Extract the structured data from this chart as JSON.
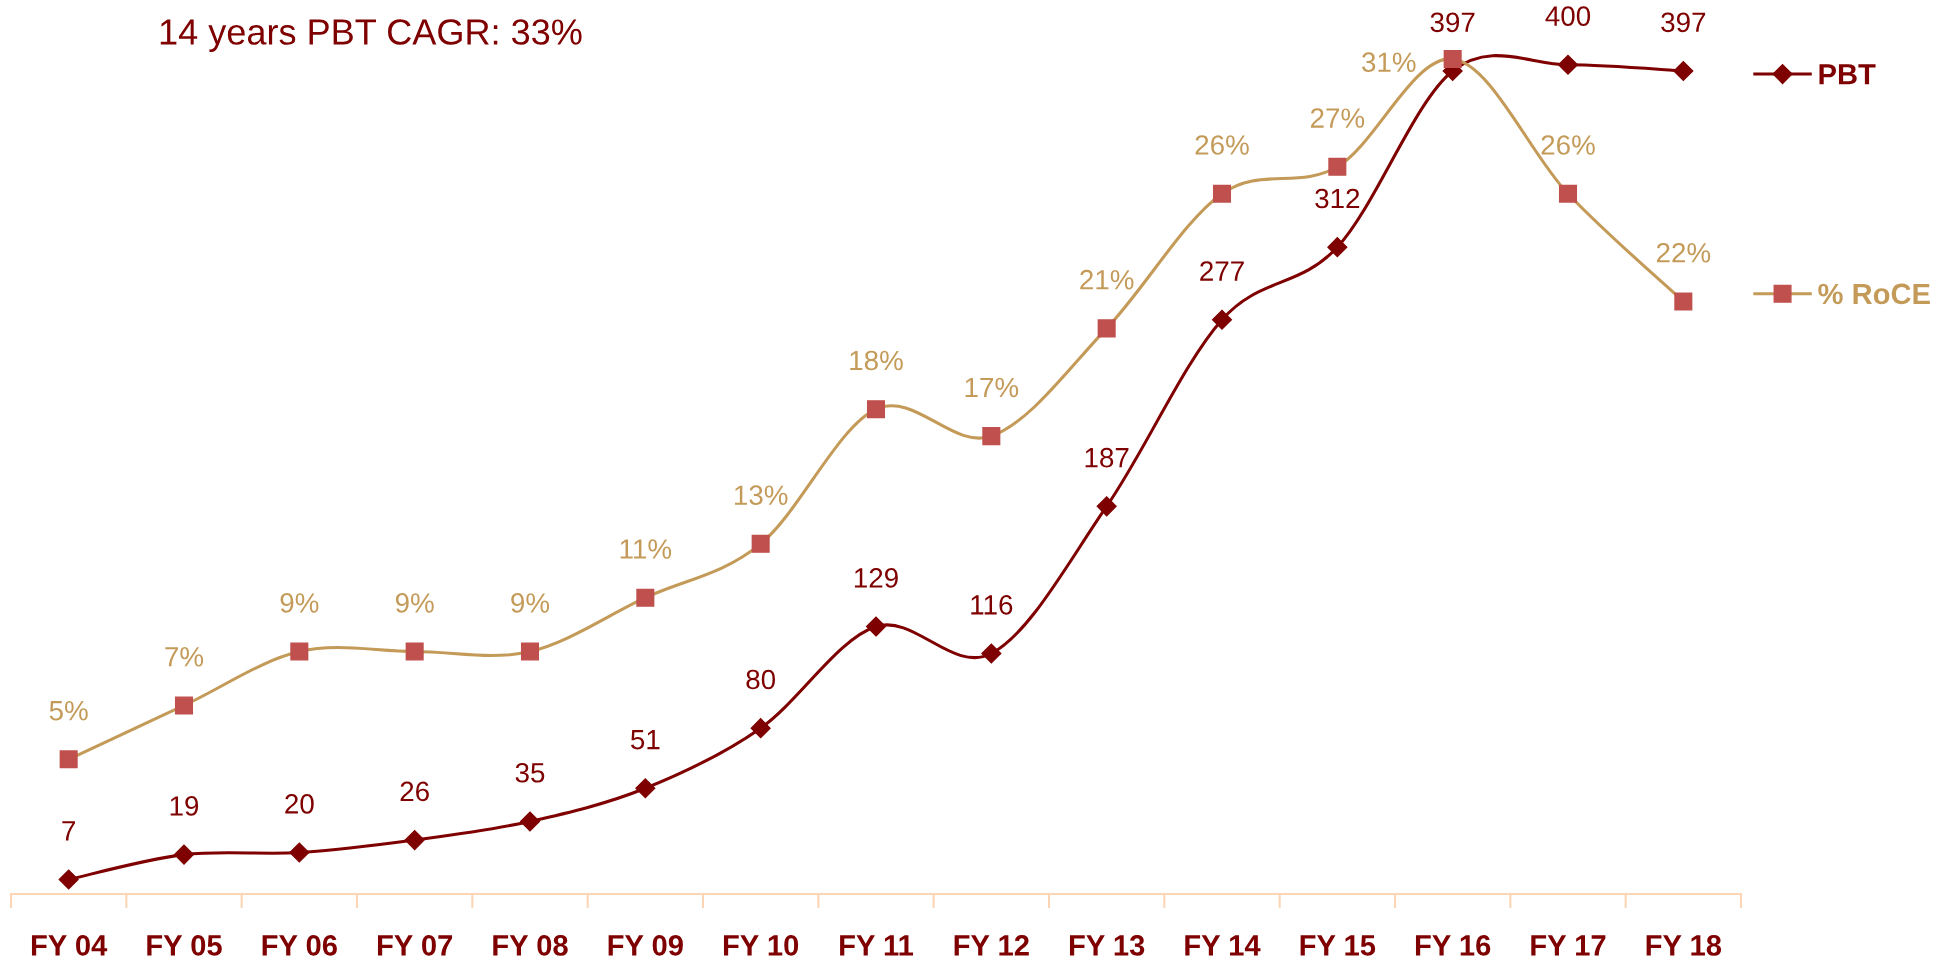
{
  "chart_data": {
    "type": "line",
    "title": "14 years PBT CAGR: 33%",
    "categories": [
      "FY 04",
      "FY 05",
      "FY 06",
      "FY 07",
      "FY 08",
      "FY 09",
      "FY 10",
      "FY 11",
      "FY 12",
      "FY 13",
      "FY 14",
      "FY 15",
      "FY 16",
      "FY 17",
      "FY 18"
    ],
    "series": [
      {
        "name": "PBT",
        "color": "#7f0000",
        "marker": "diamond",
        "values": [
          7,
          19,
          20,
          26,
          35,
          51,
          80,
          129,
          116,
          187,
          277,
          312,
          397,
          400,
          397
        ],
        "value_labels": [
          "7",
          "19",
          "20",
          "26",
          "35",
          "51",
          "80",
          "129",
          "116",
          "187",
          "277",
          "312",
          "397",
          "400",
          "397"
        ]
      },
      {
        "name": "% RoCE",
        "color": "#c49a58",
        "axis": "y2",
        "marker": "square",
        "colors": [
          "#c0504d",
          "#c0504d",
          "#c0504d",
          "#c0504d",
          "#c0504d",
          "#c0504d",
          "#c0504d",
          "#c0504d",
          "#c0504d",
          "#c0504d",
          "#c0504d",
          "#c0504d",
          "#c0504d",
          "#c0504d",
          "#c0504d"
        ],
        "values": [
          5,
          7,
          9,
          9,
          9,
          11,
          13,
          18,
          17,
          21,
          26,
          27,
          31,
          26,
          22
        ],
        "value_labels": [
          "5%",
          "7%",
          "9%",
          "9%",
          "9%",
          "11%",
          "13%",
          "18%",
          "17%",
          "21%",
          "26%",
          "27%",
          "31%",
          "26%",
          "22%"
        ]
      }
    ],
    "tick_labels": "x",
    "legend": "top right"
  }
}
